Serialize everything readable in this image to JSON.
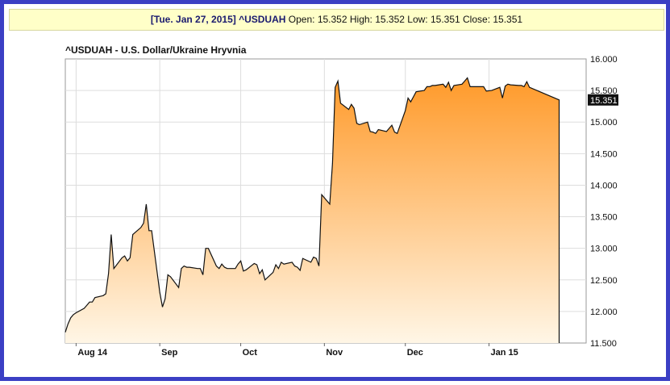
{
  "quote": {
    "date": "[Tue. Jan 27, 2015]",
    "symbol": "^USDUAH",
    "open_label": "Open:",
    "open": "15.352",
    "high_label": "High:",
    "high": "15.352",
    "low_label": "Low:",
    "low": "15.351",
    "close_label": "Close:",
    "close": "15.351"
  },
  "colors": {
    "frame": "#3b3fc4",
    "area_top": "#ff9a2a",
    "area_bottom": "#fff6e6",
    "line": "#111111",
    "grid": "#dddddd"
  },
  "chart_data": {
    "type": "area",
    "title": "^USDUAH - U.S. Dollar/Ukraine Hryvnia",
    "ylim": [
      11.5,
      16.0
    ],
    "y_ticks": [
      11.5,
      12.0,
      12.5,
      13.0,
      13.5,
      14.0,
      14.5,
      15.0,
      15.5,
      16.0
    ],
    "y_tick_labels": [
      "11.500",
      "12.000",
      "12.500",
      "13.000",
      "13.500",
      "14.000",
      "14.500",
      "15.000",
      "15.500",
      "16.000"
    ],
    "x_tick_labels": [
      "Aug 14",
      "Sep",
      "Oct",
      "Nov",
      "Dec",
      "Jan 15"
    ],
    "x_tick_dates": [
      "2014-08-01",
      "2014-09-01",
      "2014-10-01",
      "2014-11-01",
      "2014-12-01",
      "2015-01-01"
    ],
    "xlim": [
      "2014-07-28",
      "2015-02-06"
    ],
    "last_value_label": "15.351",
    "grid": true,
    "y_axis_side": "right",
    "series": [
      {
        "values": [
          [
            "2014-07-28",
            11.67
          ],
          [
            "2014-07-29",
            11.8
          ],
          [
            "2014-07-30",
            11.9
          ],
          [
            "2014-07-31",
            11.95
          ],
          [
            "2014-08-01",
            11.98
          ],
          [
            "2014-08-04",
            12.05
          ],
          [
            "2014-08-05",
            12.1
          ],
          [
            "2014-08-06",
            12.15
          ],
          [
            "2014-08-07",
            12.15
          ],
          [
            "2014-08-08",
            12.22
          ],
          [
            "2014-08-11",
            12.25
          ],
          [
            "2014-08-12",
            12.28
          ],
          [
            "2014-08-13",
            12.6
          ],
          [
            "2014-08-14",
            13.22
          ],
          [
            "2014-08-15",
            12.68
          ],
          [
            "2014-08-18",
            12.85
          ],
          [
            "2014-08-19",
            12.88
          ],
          [
            "2014-08-20",
            12.8
          ],
          [
            "2014-08-21",
            12.85
          ],
          [
            "2014-08-22",
            13.22
          ],
          [
            "2014-08-25",
            13.33
          ],
          [
            "2014-08-26",
            13.4
          ],
          [
            "2014-08-27",
            13.7
          ],
          [
            "2014-08-28",
            13.28
          ],
          [
            "2014-08-29",
            13.28
          ],
          [
            "2014-09-01",
            12.3
          ],
          [
            "2014-09-02",
            12.07
          ],
          [
            "2014-09-03",
            12.2
          ],
          [
            "2014-09-04",
            12.58
          ],
          [
            "2014-09-05",
            12.55
          ],
          [
            "2014-09-08",
            12.38
          ],
          [
            "2014-09-09",
            12.68
          ],
          [
            "2014-09-10",
            12.72
          ],
          [
            "2014-09-11",
            12.7
          ],
          [
            "2014-09-12",
            12.7
          ],
          [
            "2014-09-15",
            12.68
          ],
          [
            "2014-09-16",
            12.68
          ],
          [
            "2014-09-17",
            12.58
          ],
          [
            "2014-09-18",
            13.0
          ],
          [
            "2014-09-19",
            13.0
          ],
          [
            "2014-09-22",
            12.72
          ],
          [
            "2014-09-23",
            12.68
          ],
          [
            "2014-09-24",
            12.75
          ],
          [
            "2014-09-25",
            12.7
          ],
          [
            "2014-09-26",
            12.68
          ],
          [
            "2014-09-29",
            12.68
          ],
          [
            "2014-09-30",
            12.75
          ],
          [
            "2014-10-01",
            12.8
          ],
          [
            "2014-10-02",
            12.64
          ],
          [
            "2014-10-03",
            12.66
          ],
          [
            "2014-10-06",
            12.76
          ],
          [
            "2014-10-07",
            12.74
          ],
          [
            "2014-10-08",
            12.6
          ],
          [
            "2014-10-09",
            12.66
          ],
          [
            "2014-10-10",
            12.5
          ],
          [
            "2014-10-13",
            12.62
          ],
          [
            "2014-10-14",
            12.74
          ],
          [
            "2014-10-15",
            12.68
          ],
          [
            "2014-10-16",
            12.78
          ],
          [
            "2014-10-17",
            12.75
          ],
          [
            "2014-10-20",
            12.78
          ],
          [
            "2014-10-21",
            12.72
          ],
          [
            "2014-10-22",
            12.7
          ],
          [
            "2014-10-23",
            12.65
          ],
          [
            "2014-10-24",
            12.84
          ],
          [
            "2014-10-27",
            12.78
          ],
          [
            "2014-10-28",
            12.86
          ],
          [
            "2014-10-29",
            12.84
          ],
          [
            "2014-10-30",
            12.72
          ],
          [
            "2014-10-31",
            13.85
          ],
          [
            "2014-11-03",
            13.7
          ],
          [
            "2014-11-04",
            14.35
          ],
          [
            "2014-11-05",
            15.55
          ],
          [
            "2014-11-06",
            15.65
          ],
          [
            "2014-11-07",
            15.3
          ],
          [
            "2014-11-10",
            15.2
          ],
          [
            "2014-11-11",
            15.28
          ],
          [
            "2014-11-12",
            15.22
          ],
          [
            "2014-11-13",
            14.98
          ],
          [
            "2014-11-14",
            14.96
          ],
          [
            "2014-11-17",
            15.0
          ],
          [
            "2014-11-18",
            14.85
          ],
          [
            "2014-11-19",
            14.84
          ],
          [
            "2014-11-20",
            14.82
          ],
          [
            "2014-11-21",
            14.88
          ],
          [
            "2014-11-24",
            14.85
          ],
          [
            "2014-11-25",
            14.9
          ],
          [
            "2014-11-26",
            14.95
          ],
          [
            "2014-11-27",
            14.84
          ],
          [
            "2014-11-28",
            14.82
          ],
          [
            "2014-12-01",
            15.18
          ],
          [
            "2014-12-02",
            15.38
          ],
          [
            "2014-12-03",
            15.32
          ],
          [
            "2014-12-04",
            15.4
          ],
          [
            "2014-12-05",
            15.48
          ],
          [
            "2014-12-08",
            15.5
          ],
          [
            "2014-12-09",
            15.56
          ],
          [
            "2014-12-10",
            15.56
          ],
          [
            "2014-12-11",
            15.58
          ],
          [
            "2014-12-12",
            15.58
          ],
          [
            "2014-12-15",
            15.6
          ],
          [
            "2014-12-16",
            15.55
          ],
          [
            "2014-12-17",
            15.63
          ],
          [
            "2014-12-18",
            15.5
          ],
          [
            "2014-12-19",
            15.58
          ],
          [
            "2014-12-22",
            15.6
          ],
          [
            "2014-12-23",
            15.65
          ],
          [
            "2014-12-24",
            15.7
          ],
          [
            "2014-12-25",
            15.56
          ],
          [
            "2014-12-26",
            15.56
          ],
          [
            "2014-12-29",
            15.56
          ],
          [
            "2014-12-30",
            15.56
          ],
          [
            "2014-12-31",
            15.49
          ],
          [
            "2015-01-02",
            15.5
          ],
          [
            "2015-01-05",
            15.55
          ],
          [
            "2015-01-06",
            15.38
          ],
          [
            "2015-01-07",
            15.57
          ],
          [
            "2015-01-08",
            15.6
          ],
          [
            "2015-01-09",
            15.59
          ],
          [
            "2015-01-12",
            15.58
          ],
          [
            "2015-01-13",
            15.58
          ],
          [
            "2015-01-14",
            15.56
          ],
          [
            "2015-01-15",
            15.64
          ],
          [
            "2015-01-16",
            15.55
          ],
          [
            "2015-01-27",
            15.351
          ]
        ]
      }
    ]
  }
}
